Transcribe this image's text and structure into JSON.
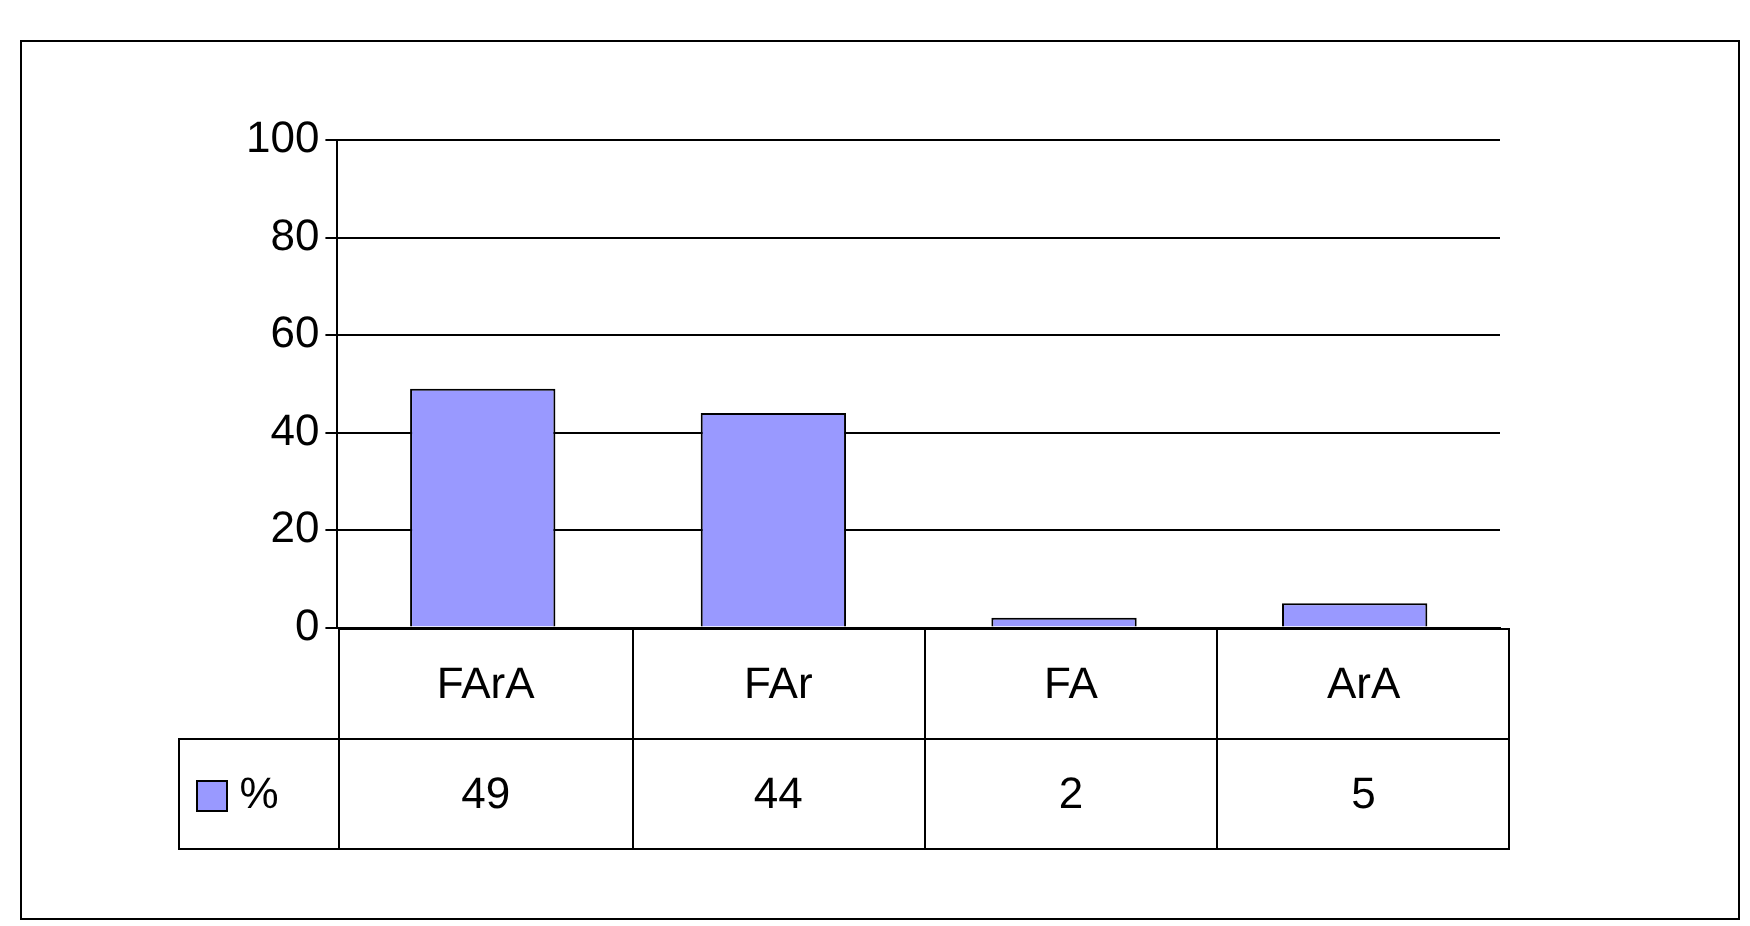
{
  "chart_data": {
    "type": "bar",
    "categories": [
      "FArA",
      "FAr",
      "FA",
      "ArA"
    ],
    "series": [
      {
        "name": "%",
        "color": "#9999ff",
        "values": [
          49,
          44,
          2,
          5
        ]
      }
    ],
    "ylim": [
      0,
      100
    ],
    "yticks": [
      0,
      20,
      40,
      60,
      80,
      100
    ],
    "grid": "y",
    "data_labels": true
  }
}
